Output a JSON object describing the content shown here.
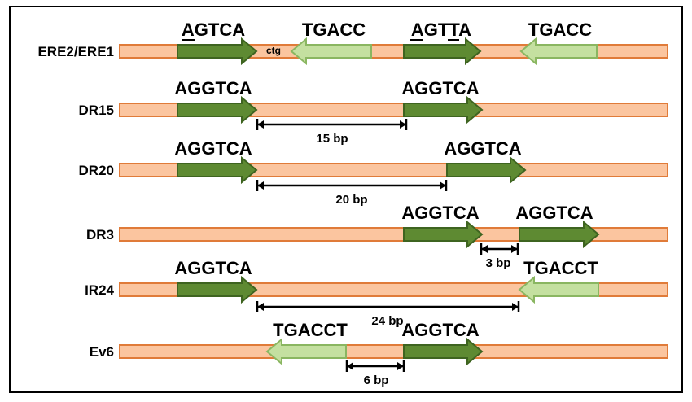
{
  "rows": [
    {
      "label": "ERE2/ERE1",
      "motifs": [
        {
          "text": "AGTCA"
        },
        {
          "text": "TGACC"
        },
        {
          "text": "AGTTA"
        },
        {
          "text": "TGACC"
        }
      ],
      "note": "ctg"
    },
    {
      "label": "DR15",
      "motifs": [
        {
          "text": "AGGTCA"
        },
        {
          "text": "AGGTCA"
        }
      ],
      "spacer": "15 bp"
    },
    {
      "label": "DR20",
      "motifs": [
        {
          "text": "AGGTCA"
        },
        {
          "text": "AGGTCA"
        }
      ],
      "spacer": "20 bp"
    },
    {
      "label": "DR3",
      "motifs": [
        {
          "text": "AGGTCA"
        },
        {
          "text": "AGGTCA"
        }
      ],
      "spacer": "3 bp"
    },
    {
      "label": "IR24",
      "motifs": [
        {
          "text": "AGGTCA"
        },
        {
          "text": "TGACCT"
        }
      ],
      "spacer": "24 bp"
    },
    {
      "label": "Ev6",
      "motifs": [
        {
          "text": "TGACCT"
        },
        {
          "text": "AGGTCA"
        }
      ],
      "spacer": "6 bp"
    }
  ]
}
